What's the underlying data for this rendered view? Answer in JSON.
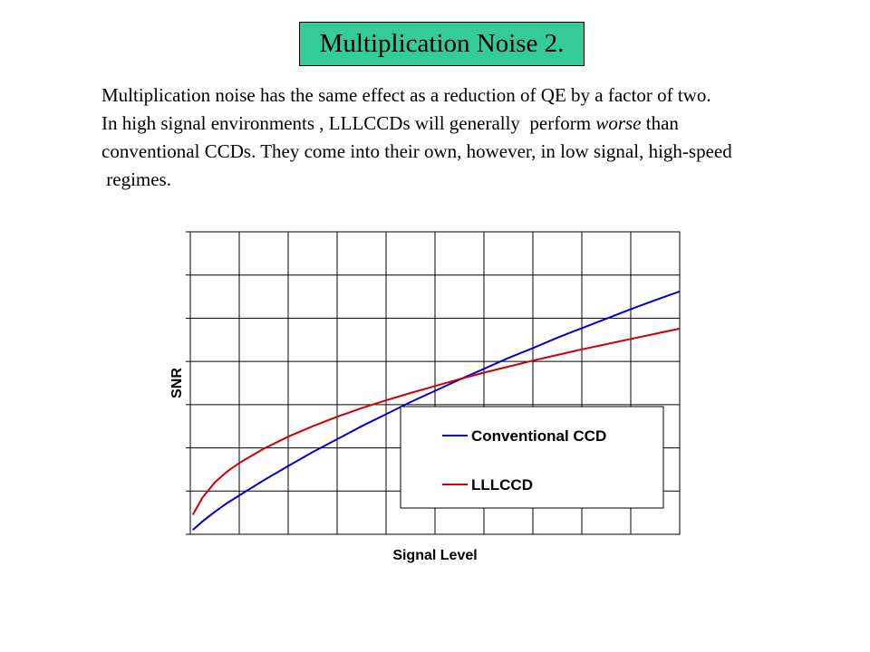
{
  "slide": {
    "title": "Multiplication Noise 2.",
    "paragraph": {
      "line1": "Multiplication noise has the same effect as a reduction of QE by a factor of two.",
      "line2_pre": "In high signal environments , LLLCCDs will generally  perform ",
      "line2_em": "worse",
      "line2_post": " than",
      "line3": "conventional CCDs. They come into their own, however, in low signal, high-speed",
      "line4": " regimes."
    }
  },
  "colors": {
    "title_bg": "#33cc99",
    "conventional": "#0000cc",
    "lllccd": "#cc0000"
  },
  "chart_data": {
    "type": "line",
    "title": "",
    "xlabel": "Signal Level",
    "ylabel": "SNR",
    "xlim": [
      0,
      10
    ],
    "ylim": [
      0,
      7
    ],
    "grid": true,
    "legend_position": "lower-right",
    "x": [
      0.05,
      0.25,
      0.5,
      0.75,
      1,
      1.5,
      2,
      2.5,
      3,
      3.5,
      4,
      4.5,
      5,
      5.5,
      6,
      6.5,
      7,
      7.5,
      8,
      8.5,
      9,
      9.5,
      10
    ],
    "series": [
      {
        "name": "Conventional CCD",
        "color": "#0000cc",
        "values": [
          0.1,
          0.3,
          0.52,
          0.72,
          0.9,
          1.25,
          1.58,
          1.9,
          2.2,
          2.5,
          2.78,
          3.06,
          3.32,
          3.58,
          3.83,
          4.08,
          4.31,
          4.55,
          4.77,
          4.99,
          5.21,
          5.42,
          5.62
        ]
      },
      {
        "name": "LLLCCD",
        "color": "#cc0000",
        "values": [
          0.45,
          0.85,
          1.2,
          1.45,
          1.65,
          1.98,
          2.26,
          2.5,
          2.72,
          2.92,
          3.1,
          3.27,
          3.43,
          3.59,
          3.74,
          3.88,
          4.02,
          4.15,
          4.28,
          4.4,
          4.52,
          4.64,
          4.76
        ]
      }
    ]
  }
}
